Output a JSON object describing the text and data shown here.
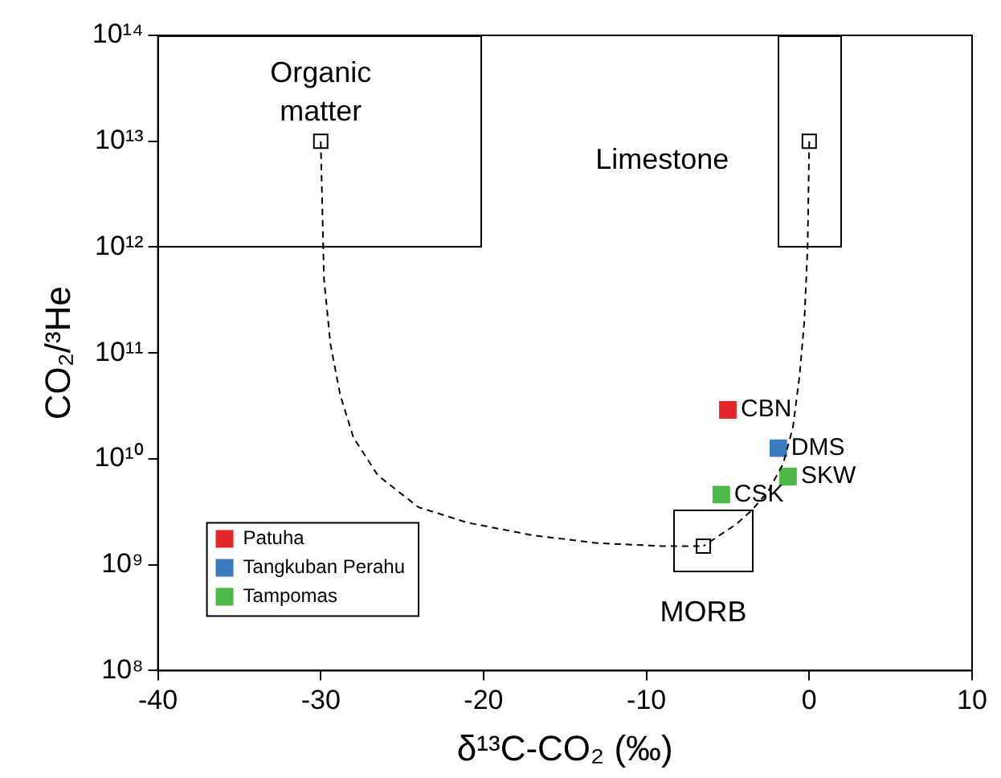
{
  "chart_data": {
    "type": "scatter",
    "xlabel": "δ¹³C-CO₂ (‰)",
    "ylabel": "CO₂/³He",
    "log": "y",
    "grid": false,
    "legend": "bottom left",
    "marker": "square",
    "xlim": [
      -40,
      10
    ],
    "xticks": [
      -40,
      -30,
      -20,
      -10,
      0,
      10
    ],
    "ylim": [
      100000000,
      100000000000000
    ],
    "yticks": [
      {
        "value": 100000000,
        "label": "10⁸"
      },
      {
        "value": 1000000000,
        "label": "10⁹"
      },
      {
        "value": 10000000000,
        "label": "10¹⁰"
      },
      {
        "value": 100000000000,
        "label": "10¹¹"
      },
      {
        "value": 1000000000000,
        "label": "10¹²"
      },
      {
        "value": 10000000000000,
        "label": "10¹³"
      },
      {
        "value": 100000000000000,
        "label": "10¹⁴"
      }
    ],
    "series": [
      {
        "type": "line",
        "line_style": "dashed",
        "marker": "none",
        "color": "#000000",
        "x": [
          -30,
          -29.8,
          -29.4,
          -28.8,
          -28,
          -26.5,
          -24,
          -21,
          -17,
          -13,
          -9,
          -6.5
        ],
        "values": [
          10000000000000,
          500000000000,
          120000000000,
          40000000000,
          16000000000,
          7000000000,
          3500000000,
          2500000000,
          1900000000,
          1600000000,
          1500000000,
          1500000000
        ]
      },
      {
        "type": "line",
        "line_style": "dashed",
        "marker": "none",
        "color": "#000000",
        "x": [
          0,
          -0.1,
          -0.3,
          -0.6,
          -1,
          -1.6,
          -2.5,
          -3.5,
          -4.5,
          -5.5,
          -6.5
        ],
        "values": [
          10000000000000,
          1000000000000,
          200000000000,
          60000000000,
          20000000000,
          9000000000,
          5000000000,
          3300000000,
          2400000000,
          1900000000,
          1500000000
        ]
      },
      {
        "color": "#000000",
        "x": [
          -30,
          0,
          -6.5
        ],
        "values": [
          10000000000000,
          10000000000000,
          1500000000
        ]
      },
      {
        "name": "Patuha",
        "color": "#e3262a",
        "x": [
          -5
        ],
        "values": [
          29000000000
        ]
      },
      {
        "name": "Tangkuban Perahu",
        "color": "#3a7bbf",
        "x": [
          -1.9
        ],
        "values": [
          12600000000
        ]
      },
      {
        "name": "Tampomas",
        "color": "#4cb848",
        "x": [
          -5.4,
          -1.3
        ],
        "values": [
          4600000000,
          6800000000
        ]
      }
    ],
    "annotations": [
      "Organic matter",
      "Limestone",
      "MORB",
      {
        "text": "CBN",
        "x": -5,
        "y": 29000000000
      },
      {
        "text": "DMS",
        "x": -1.9,
        "y": 12600000000
      },
      {
        "text": "CSK",
        "x": -5.4,
        "y": 4600000000
      },
      {
        "text": "SKW",
        "x": -1.3,
        "y": 6800000000
      }
    ]
  }
}
